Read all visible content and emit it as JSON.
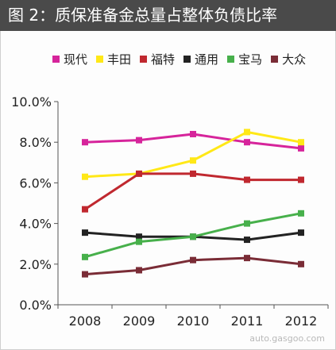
{
  "figure": {
    "title": "图 2：质保准备金总量占整体负债比率",
    "watermark": "auto.gasgoo.com"
  },
  "colors": {
    "title_bar_bg": "#4a4a4a",
    "title_text": "#ffffff"
  },
  "chart_data": {
    "type": "line",
    "title": "图 2：质保准备金总量占整体负债比率",
    "xlabel": "",
    "ylabel": "",
    "x": [
      "2008",
      "2009",
      "2010",
      "2011",
      "2012"
    ],
    "ylim": [
      0,
      10
    ],
    "yticks": [
      0,
      2,
      4,
      6,
      8,
      10
    ],
    "ytick_labels": [
      "0.0%",
      "2.0%",
      "4.0%",
      "6.0%",
      "8.0%",
      "10.0%"
    ],
    "grid": false,
    "legend_position": "top",
    "series": [
      {
        "name": "现代",
        "color": "#d6249b",
        "values": [
          8.0,
          8.1,
          8.4,
          8.0,
          7.7
        ]
      },
      {
        "name": "丰田",
        "color": "#ffe817",
        "values": [
          6.3,
          6.45,
          7.1,
          8.5,
          8.0
        ]
      },
      {
        "name": "福特",
        "color": "#c0282f",
        "values": [
          4.7,
          6.45,
          6.45,
          6.15,
          6.15
        ]
      },
      {
        "name": "通用",
        "color": "#222222",
        "values": [
          3.55,
          3.35,
          3.35,
          3.2,
          3.55
        ]
      },
      {
        "name": "宝马",
        "color": "#47b04b",
        "values": [
          2.35,
          3.1,
          3.35,
          4.0,
          4.5
        ]
      },
      {
        "name": "大众",
        "color": "#7a2c36",
        "values": [
          1.5,
          1.7,
          2.2,
          2.3,
          2.0
        ]
      }
    ]
  }
}
